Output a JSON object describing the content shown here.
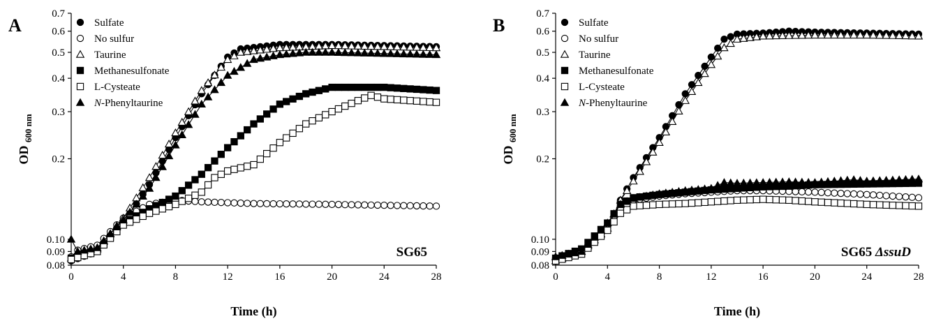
{
  "chart_data": [
    {
      "type": "scatter",
      "panel": "A",
      "strain_label": "SG65",
      "strain_suffix": "",
      "xlabel": "Time (h)",
      "ylabel": "OD",
      "ylabel_sub": "600 nm",
      "xlim": [
        0,
        28
      ],
      "ylim": [
        0.08,
        0.7
      ],
      "y_scale": "log",
      "x_ticks": [
        "0",
        "4",
        "8",
        "12",
        "16",
        "20",
        "24",
        "28"
      ],
      "y_ticks": [
        "0.08",
        "0.09",
        "0.10",
        "0.2",
        "0.3",
        "0.4",
        "0.5",
        "0.6",
        "0.7"
      ],
      "grid": false,
      "legend_position": "top-left",
      "series": [
        {
          "name": "Sulfate",
          "name_italic_prefix": "",
          "name_rest": "Sulfate",
          "marker": "filled-circle",
          "points": [
            [
              0,
              0.083
            ],
            [
              2,
              0.09
            ],
            [
              4,
              0.115
            ],
            [
              6,
              0.16
            ],
            [
              8,
              0.24
            ],
            [
              10,
              0.35
            ],
            [
              12,
              0.48
            ],
            [
              13,
              0.515
            ],
            [
              16,
              0.535
            ],
            [
              20,
              0.535
            ],
            [
              24,
              0.53
            ],
            [
              28,
              0.525
            ]
          ]
        },
        {
          "name": "No sulfur",
          "name_italic_prefix": "",
          "name_rest": "No sulfur",
          "marker": "open-circle",
          "points": [
            [
              0,
              0.086
            ],
            [
              0.5,
              0.091
            ],
            [
              2,
              0.095
            ],
            [
              4,
              0.12
            ],
            [
              6,
              0.135
            ],
            [
              8,
              0.14
            ],
            [
              10,
              0.138
            ],
            [
              14,
              0.136
            ],
            [
              20,
              0.135
            ],
            [
              24,
              0.134
            ],
            [
              28,
              0.133
            ]
          ]
        },
        {
          "name": "Taurine",
          "name_italic_prefix": "",
          "name_rest": "Taurine",
          "marker": "open-triangle",
          "points": [
            [
              0,
              0.085
            ],
            [
              2,
              0.092
            ],
            [
              4,
              0.12
            ],
            [
              6,
              0.17
            ],
            [
              8,
              0.25
            ],
            [
              10,
              0.36
            ],
            [
              12,
              0.47
            ],
            [
              13,
              0.5
            ],
            [
              16,
              0.52
            ],
            [
              20,
              0.53
            ],
            [
              24,
              0.525
            ],
            [
              28,
              0.52
            ]
          ]
        },
        {
          "name": "Methanesulfonate",
          "name_italic_prefix": "",
          "name_rest": "Methanesulfonate",
          "marker": "filled-square",
          "points": [
            [
              0,
              0.085
            ],
            [
              2,
              0.09
            ],
            [
              4,
              0.115
            ],
            [
              6,
              0.13
            ],
            [
              8,
              0.145
            ],
            [
              10,
              0.175
            ],
            [
              12,
              0.22
            ],
            [
              14,
              0.27
            ],
            [
              16,
              0.32
            ],
            [
              18,
              0.35
            ],
            [
              20,
              0.37
            ],
            [
              22,
              0.37
            ],
            [
              24,
              0.37
            ],
            [
              28,
              0.36
            ]
          ]
        },
        {
          "name": "L-Cysteate",
          "name_italic_prefix": "",
          "name_rest": "L-Cysteate",
          "marker": "open-square",
          "points": [
            [
              0,
              0.084
            ],
            [
              2,
              0.09
            ],
            [
              4,
              0.113
            ],
            [
              6,
              0.125
            ],
            [
              8,
              0.135
            ],
            [
              10,
              0.15
            ],
            [
              11,
              0.17
            ],
            [
              12,
              0.18
            ],
            [
              13,
              0.185
            ],
            [
              14,
              0.19
            ],
            [
              16,
              0.23
            ],
            [
              18,
              0.27
            ],
            [
              20,
              0.3
            ],
            [
              22,
              0.33
            ],
            [
              23,
              0.345
            ],
            [
              24,
              0.335
            ],
            [
              28,
              0.325
            ]
          ]
        },
        {
          "name": "N-Phenyltaurine",
          "name_italic_prefix": "N",
          "name_rest": "-Phenyltaurine",
          "marker": "filled-triangle",
          "points": [
            [
              0,
              0.1
            ],
            [
              0.5,
              0.09
            ],
            [
              2,
              0.093
            ],
            [
              4,
              0.118
            ],
            [
              6,
              0.155
            ],
            [
              8,
              0.225
            ],
            [
              10,
              0.32
            ],
            [
              12,
              0.41
            ],
            [
              14,
              0.47
            ],
            [
              16,
              0.49
            ],
            [
              18,
              0.5
            ],
            [
              20,
              0.5
            ],
            [
              24,
              0.495
            ],
            [
              28,
              0.49
            ]
          ]
        }
      ]
    },
    {
      "type": "scatter",
      "panel": "B",
      "strain_label": "SG65 ",
      "strain_suffix": "ΔssuD",
      "xlabel": "Time (h)",
      "ylabel": "OD",
      "ylabel_sub": "600 nm",
      "xlim": [
        0,
        28
      ],
      "ylim": [
        0.08,
        0.7
      ],
      "y_scale": "log",
      "x_ticks": [
        "0",
        "4",
        "8",
        "12",
        "16",
        "20",
        "24",
        "28"
      ],
      "y_ticks": [
        "0.08",
        "0.09",
        "0.10",
        "0.2",
        "0.3",
        "0.4",
        "0.5",
        "0.6",
        "0.7"
      ],
      "grid": false,
      "legend_position": "top-left",
      "series": [
        {
          "name": "Sulfate",
          "name_italic_prefix": "",
          "name_rest": "Sulfate",
          "marker": "filled-circle",
          "points": [
            [
              0,
              0.083
            ],
            [
              2,
              0.09
            ],
            [
              4,
              0.11
            ],
            [
              5,
              0.14
            ],
            [
              6,
              0.17
            ],
            [
              8,
              0.24
            ],
            [
              10,
              0.35
            ],
            [
              12,
              0.48
            ],
            [
              13,
              0.56
            ],
            [
              14,
              0.585
            ],
            [
              16,
              0.59
            ],
            [
              18,
              0.6
            ],
            [
              20,
              0.595
            ],
            [
              24,
              0.59
            ],
            [
              28,
              0.585
            ]
          ]
        },
        {
          "name": "No sulfur",
          "name_italic_prefix": "",
          "name_rest": "No sulfur",
          "marker": "open-circle",
          "points": [
            [
              0,
              0.085
            ],
            [
              2,
              0.09
            ],
            [
              4,
              0.112
            ],
            [
              5,
              0.13
            ],
            [
              6,
              0.14
            ],
            [
              8,
              0.145
            ],
            [
              10,
              0.148
            ],
            [
              12,
              0.15
            ],
            [
              14,
              0.152
            ],
            [
              16,
              0.152
            ],
            [
              18,
              0.151
            ],
            [
              20,
              0.15
            ],
            [
              24,
              0.147
            ],
            [
              28,
              0.143
            ]
          ]
        },
        {
          "name": "Taurine",
          "name_italic_prefix": "",
          "name_rest": "Taurine",
          "marker": "open-triangle",
          "points": [
            [
              0,
              0.083
            ],
            [
              2,
              0.09
            ],
            [
              4,
              0.11
            ],
            [
              5,
              0.14
            ],
            [
              6,
              0.165
            ],
            [
              8,
              0.23
            ],
            [
              10,
              0.33
            ],
            [
              12,
              0.45
            ],
            [
              13,
              0.52
            ],
            [
              14,
              0.56
            ],
            [
              16,
              0.575
            ],
            [
              20,
              0.58
            ],
            [
              24,
              0.58
            ],
            [
              28,
              0.575
            ]
          ]
        },
        {
          "name": "Methanesulfonate",
          "name_italic_prefix": "",
          "name_rest": "Methanesulfonate",
          "marker": "filled-square",
          "points": [
            [
              0,
              0.085
            ],
            [
              2,
              0.092
            ],
            [
              4,
              0.115
            ],
            [
              5,
              0.135
            ],
            [
              6,
              0.143
            ],
            [
              8,
              0.147
            ],
            [
              10,
              0.15
            ],
            [
              12,
              0.153
            ],
            [
              14,
              0.155
            ],
            [
              16,
              0.157
            ],
            [
              18,
              0.158
            ],
            [
              20,
              0.16
            ],
            [
              24,
              0.161
            ],
            [
              28,
              0.162
            ]
          ]
        },
        {
          "name": "L-Cysteate",
          "name_italic_prefix": "",
          "name_rest": "L-Cysteate",
          "marker": "open-square",
          "points": [
            [
              0,
              0.083
            ],
            [
              2,
              0.088
            ],
            [
              4,
              0.108
            ],
            [
              5,
              0.125
            ],
            [
              6,
              0.133
            ],
            [
              8,
              0.135
            ],
            [
              10,
              0.136
            ],
            [
              12,
              0.138
            ],
            [
              14,
              0.14
            ],
            [
              16,
              0.141
            ],
            [
              18,
              0.14
            ],
            [
              20,
              0.138
            ],
            [
              24,
              0.135
            ],
            [
              28,
              0.133
            ]
          ]
        },
        {
          "name": "N-Phenyltaurine",
          "name_italic_prefix": "N",
          "name_rest": "-Phenyltaurine",
          "marker": "filled-triangle",
          "points": [
            [
              0,
              0.086
            ],
            [
              2,
              0.09
            ],
            [
              4,
              0.115
            ],
            [
              5,
              0.135
            ],
            [
              6,
              0.142
            ],
            [
              8,
              0.148
            ],
            [
              10,
              0.152
            ],
            [
              12,
              0.155
            ],
            [
              13,
              0.163
            ],
            [
              14,
              0.162
            ],
            [
              16,
              0.163
            ],
            [
              18,
              0.164
            ],
            [
              20,
              0.163
            ],
            [
              23,
              0.167
            ],
            [
              24,
              0.165
            ],
            [
              28,
              0.168
            ]
          ]
        }
      ]
    }
  ]
}
